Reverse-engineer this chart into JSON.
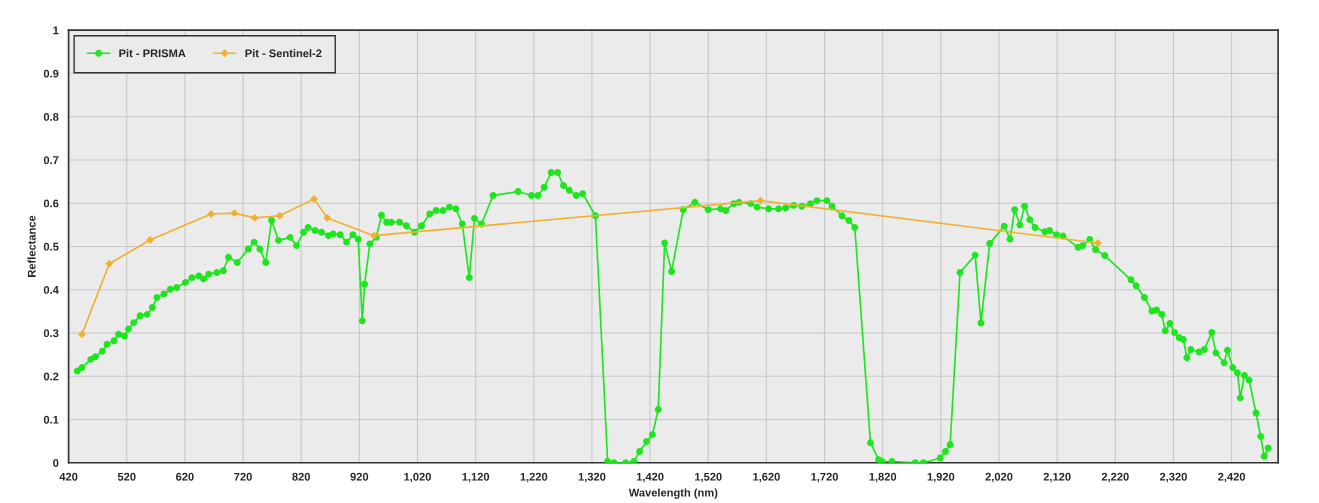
{
  "chart_data": {
    "type": "line",
    "xlabel": "Wavelength (nm)",
    "ylabel": "Reflectance",
    "xlim": [
      420,
      2500
    ],
    "ylim": [
      0,
      1
    ],
    "xticks": [
      420,
      520,
      620,
      720,
      820,
      920,
      {
        "value": 1020,
        "label": "1,020"
      },
      {
        "value": 1120,
        "label": "1,120"
      },
      {
        "value": 1220,
        "label": "1,220"
      },
      {
        "value": 1320,
        "label": "1,320"
      },
      {
        "value": 1420,
        "label": "1,420"
      },
      {
        "value": 1520,
        "label": "1,520"
      },
      {
        "value": 1620,
        "label": "1,620"
      },
      {
        "value": 1720,
        "label": "1,720"
      },
      {
        "value": 1820,
        "label": "1,820"
      },
      {
        "value": 1920,
        "label": "1,920"
      },
      {
        "value": 2020,
        "label": "2,020"
      },
      {
        "value": 2120,
        "label": "2,120"
      },
      {
        "value": 2220,
        "label": "2,220"
      },
      {
        "value": 2320,
        "label": "2,320"
      },
      {
        "value": 2420,
        "label": "2,420"
      }
    ],
    "yticks": [
      0,
      0.1,
      0.2,
      0.3,
      0.4,
      0.5,
      0.6,
      0.7,
      0.8,
      0.9,
      1
    ],
    "grid": true,
    "legend": "top left",
    "series": [
      {
        "name": "Pit - PRISMA",
        "color": "#1ee61e",
        "marker": "circle",
        "x": [
          435,
          443,
          458,
          466,
          478,
          486,
          498,
          506,
          516,
          523,
          532,
          543,
          555,
          564,
          572,
          584,
          595,
          606,
          621,
          632,
          644,
          652,
          661,
          675,
          686,
          695,
          710,
          729,
          739,
          749,
          759,
          769,
          781,
          801,
          812,
          824,
          832,
          844,
          855,
          867,
          875,
          887,
          898,
          909,
          918,
          925,
          929,
          938,
          949,
          958,
          967,
          975,
          989,
          1001,
          1015,
          1027,
          1041,
          1052,
          1064,
          1075,
          1086,
          1097,
          1109,
          1118,
          1130,
          1150,
          1193,
          1216,
          1227,
          1238,
          1250,
          1261,
          1271,
          1281,
          1293,
          1304,
          1326,
          1347,
          1358,
          1378,
          1392,
          1402,
          1414,
          1424,
          1434,
          1445,
          1457,
          1477,
          1497,
          1520,
          1541,
          1550,
          1564,
          1573,
          1593,
          1604,
          1624,
          1641,
          1653,
          1667,
          1681,
          1696,
          1707,
          1724,
          1733,
          1750,
          1762,
          1772,
          1799,
          1813,
          1819,
          1836,
          1876,
          1890,
          1919,
          1928,
          1936,
          1953,
          1979,
          1989,
          2004,
          2029,
          2039,
          2047,
          2056,
          2064,
          2073,
          2082,
          2099,
          2107,
          2119,
          2130,
          2156,
          2164,
          2176,
          2186,
          2202,
          2247,
          2256,
          2270,
          2283,
          2291,
          2300,
          2306,
          2314,
          2322,
          2330,
          2337,
          2343,
          2350,
          2364,
          2373,
          2386,
          2393,
          2407,
          2413,
          2422,
          2430,
          2435,
          2442,
          2450,
          2462,
          2470,
          2476,
          2483
        ],
        "values": [
          0.212,
          0.22,
          0.239,
          0.245,
          0.258,
          0.274,
          0.282,
          0.297,
          0.293,
          0.309,
          0.324,
          0.34,
          0.343,
          0.359,
          0.382,
          0.39,
          0.401,
          0.405,
          0.417,
          0.428,
          0.432,
          0.425,
          0.436,
          0.44,
          0.444,
          0.475,
          0.463,
          0.494,
          0.51,
          0.494,
          0.463,
          0.56,
          0.514,
          0.521,
          0.502,
          0.533,
          0.544,
          0.537,
          0.533,
          0.525,
          0.529,
          0.527,
          0.51,
          0.527,
          0.517,
          0.328,
          0.413,
          0.506,
          0.521,
          0.572,
          0.556,
          0.556,
          0.556,
          0.548,
          0.533,
          0.548,
          0.575,
          0.583,
          0.583,
          0.591,
          0.587,
          0.552,
          0.428,
          0.565,
          0.552,
          0.618,
          0.627,
          0.618,
          0.618,
          0.637,
          0.671,
          0.671,
          0.641,
          0.63,
          0.618,
          0.622,
          0.571,
          0.003,
          0.0,
          0.0,
          0.003,
          0.026,
          0.049,
          0.065,
          0.123,
          0.508,
          0.442,
          0.585,
          0.602,
          0.585,
          0.587,
          0.583,
          0.599,
          0.602,
          0.599,
          0.591,
          0.587,
          0.587,
          0.589,
          0.595,
          0.593,
          0.599,
          0.606,
          0.606,
          0.593,
          0.571,
          0.56,
          0.544,
          0.046,
          0.007,
          0.003,
          0.003,
          0.0,
          0.0,
          0.011,
          0.026,
          0.042,
          0.44,
          0.48,
          0.323,
          0.507,
          0.547,
          0.517,
          0.585,
          0.55,
          0.593,
          0.562,
          0.544,
          0.534,
          0.537,
          0.527,
          0.524,
          0.498,
          0.502,
          0.516,
          0.493,
          0.479,
          0.423,
          0.409,
          0.382,
          0.351,
          0.353,
          0.343,
          0.305,
          0.322,
          0.301,
          0.289,
          0.285,
          0.243,
          0.262,
          0.256,
          0.262,
          0.301,
          0.254,
          0.231,
          0.26,
          0.22,
          0.208,
          0.15,
          0.202,
          0.191,
          0.115,
          0.061,
          0.015,
          0.034
        ]
      },
      {
        "name": "Pit - Sentinel-2",
        "color": "#f0b030",
        "marker": "diamond",
        "x": [
          443,
          490,
          560,
          665,
          705,
          740,
          783,
          842,
          865,
          945,
          1610,
          2190
        ],
        "values": [
          0.297,
          0.46,
          0.515,
          0.575,
          0.577,
          0.566,
          0.571,
          0.61,
          0.566,
          0.525,
          0.606,
          0.508
        ]
      }
    ]
  }
}
